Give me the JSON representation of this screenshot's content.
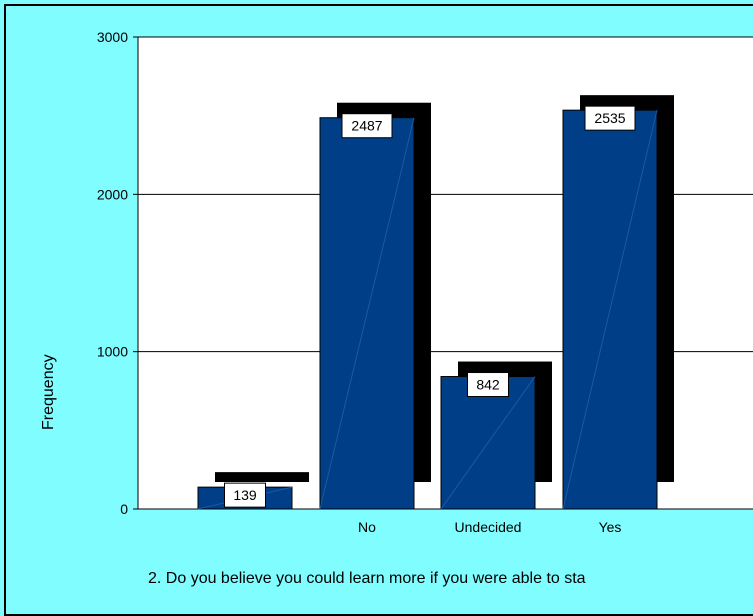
{
  "chart_data": {
    "type": "bar",
    "categories": [
      "",
      "No",
      "Undecided",
      "Yes"
    ],
    "values": [
      139,
      2487,
      842,
      2535
    ],
    "title": "",
    "xlabel": "2. Do you believe you could learn more if you were able to sta",
    "ylabel": "Frequency",
    "ylim": [
      0,
      3000
    ],
    "yticks": [
      0,
      1000,
      2000,
      3000
    ],
    "grid": true,
    "colors": {
      "background": "#80fdff",
      "plot_area": "#ffffff",
      "bar": "#003f87",
      "shadow": "#000000",
      "label_box": "#ffffff"
    }
  }
}
